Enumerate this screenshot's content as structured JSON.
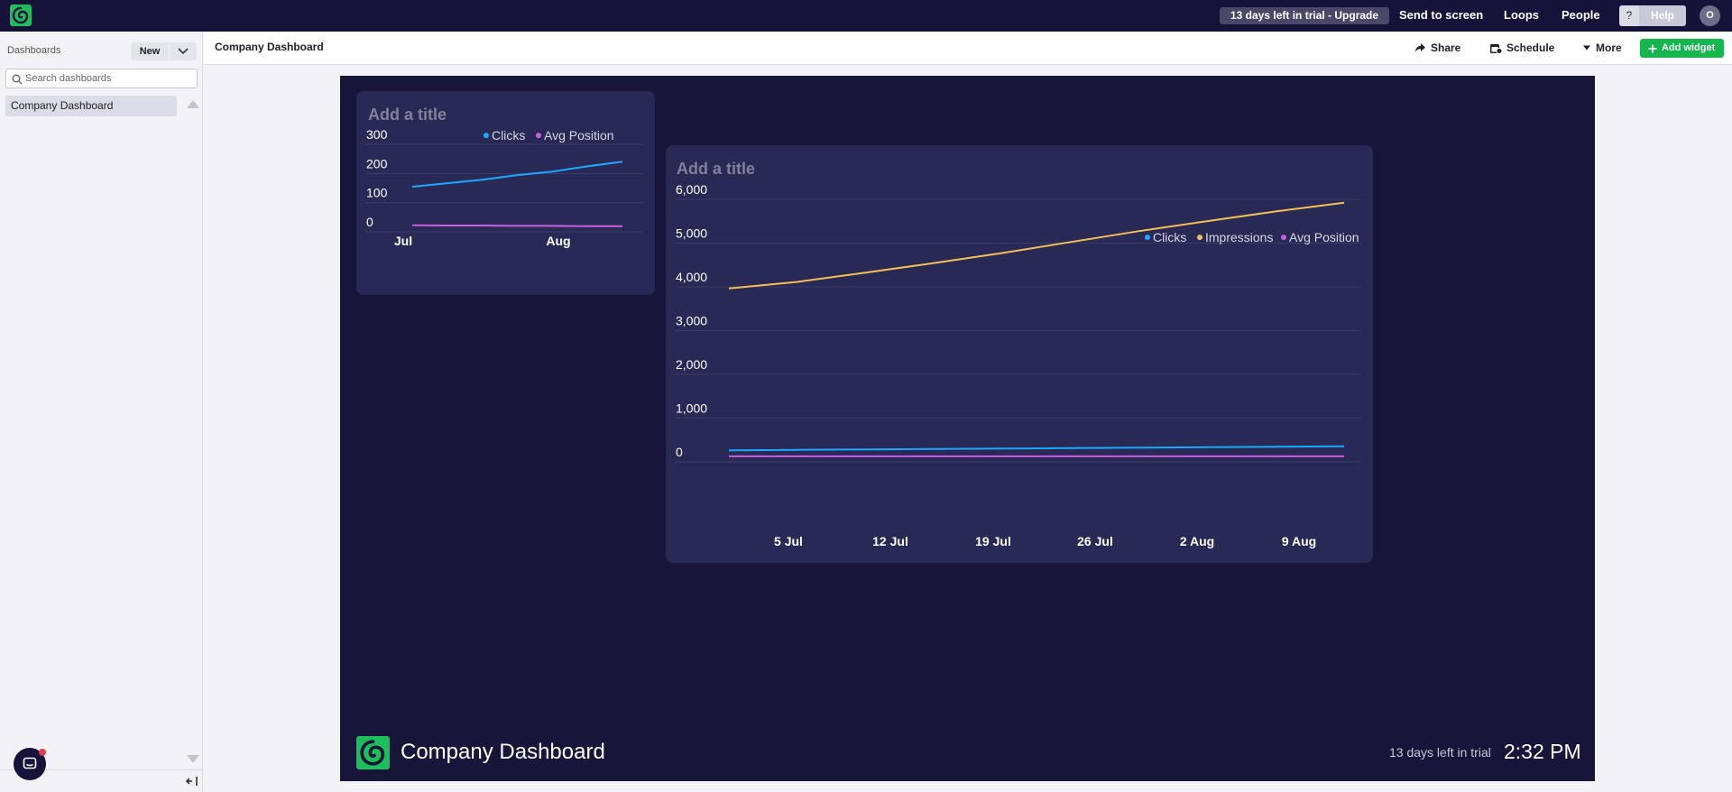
{
  "topbar": {
    "logo_icon": "swirl-logo-icon",
    "trial_text": "13 days left in trial - Upgrade",
    "nav": [
      "Send to screen",
      "Loops",
      "People"
    ],
    "help_q": "?",
    "help_label": "Help",
    "avatar_initial": "O"
  },
  "sidebar": {
    "title": "Dashboards",
    "new_label": "New",
    "search_placeholder": "Search dashboards",
    "items": [
      {
        "label": "Company Dashboard"
      }
    ]
  },
  "header": {
    "title": "Company Dashboard",
    "share_label": "Share",
    "schedule_label": "Schedule",
    "more_label": "More",
    "add_widget_label": "Add widget"
  },
  "canvas": {
    "footer_title": "Company Dashboard",
    "footer_trial": "13 days left in trial",
    "footer_time": "2:32 PM"
  },
  "colors": {
    "clicks": "#1aa9ff",
    "impressions": "#f0c055",
    "avg_position": "#c95fe0",
    "canvas_bg": "#17153a",
    "widget_bg": "#282a55",
    "accent_green": "#16b64f"
  },
  "chart_data": [
    {
      "type": "line",
      "title": "",
      "placeholder_title": "Add a title",
      "x_ticks": [
        "Jul",
        "Aug"
      ],
      "y_ticks": [
        "300",
        "200",
        "100",
        "0"
      ],
      "ylim": [
        0,
        300
      ],
      "grid": true,
      "legend": "top-right",
      "x": [
        0,
        1,
        2,
        3,
        4,
        5,
        6
      ],
      "series": [
        {
          "name": "Clicks",
          "values": [
            136,
            148,
            160,
            176,
            188,
            206,
            222
          ]
        },
        {
          "name": "Avg Position",
          "values": [
            4,
            3,
            3,
            2,
            2,
            1,
            1
          ]
        }
      ]
    },
    {
      "type": "line",
      "title": "",
      "placeholder_title": "Add a title",
      "x_ticks": [
        "5 Jul",
        "12 Jul",
        "19 Jul",
        "26 Jul",
        "2 Aug",
        "9 Aug"
      ],
      "y_ticks": [
        "6,000",
        "5,000",
        "4,000",
        "3,000",
        "2,000",
        "1,000",
        "0"
      ],
      "ylim": [
        0,
        6000
      ],
      "grid": true,
      "legend": "top-right",
      "x": [
        0,
        1,
        2,
        3,
        4,
        5,
        6,
        7,
        8,
        9
      ],
      "series": [
        {
          "name": "Clicks",
          "values": [
            140,
            150,
            160,
            170,
            180,
            190,
            200,
            210,
            220,
            230
          ]
        },
        {
          "name": "Impressions",
          "values": [
            3840,
            3990,
            4200,
            4420,
            4650,
            4900,
            5150,
            5380,
            5600,
            5800
          ]
        },
        {
          "name": "Avg Position",
          "values": [
            2,
            2,
            2,
            2,
            2,
            2,
            2,
            2,
            2,
            2
          ]
        }
      ]
    }
  ]
}
